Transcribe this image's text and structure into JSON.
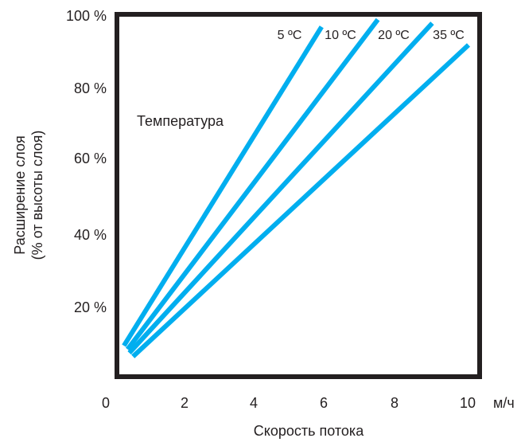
{
  "chart_data": {
    "type": "line",
    "title": "",
    "xlabel": "Скорость потока",
    "ylabel_line1": "Расширение слоя",
    "ylabel_line2": "(% от высоты слоя)",
    "x_unit": "м/ч",
    "annotation": "Температура",
    "xlim": [
      0,
      10.3
    ],
    "ylim": [
      2,
      100
    ],
    "x_ticks": [
      "0",
      "2",
      "4",
      "6",
      "8",
      "10"
    ],
    "y_ticks": [
      "20 %",
      "40 %",
      "60 %",
      "80 %",
      "100 %"
    ],
    "grid": false,
    "series": [
      {
        "name": "5 ºC",
        "x": [
          0.5,
          5.95
        ],
        "y": [
          9,
          97
        ]
      },
      {
        "name": "10 ºC",
        "x": [
          0.6,
          7.5
        ],
        "y": [
          8,
          99
        ]
      },
      {
        "name": "20 ºC",
        "x": [
          0.65,
          9.0
        ],
        "y": [
          7,
          98
        ]
      },
      {
        "name": "35 ºC",
        "x": [
          0.75,
          10.0
        ],
        "y": [
          6,
          92
        ]
      }
    ],
    "colors": {
      "line": "#00aeef",
      "frame": "#231f20"
    }
  }
}
